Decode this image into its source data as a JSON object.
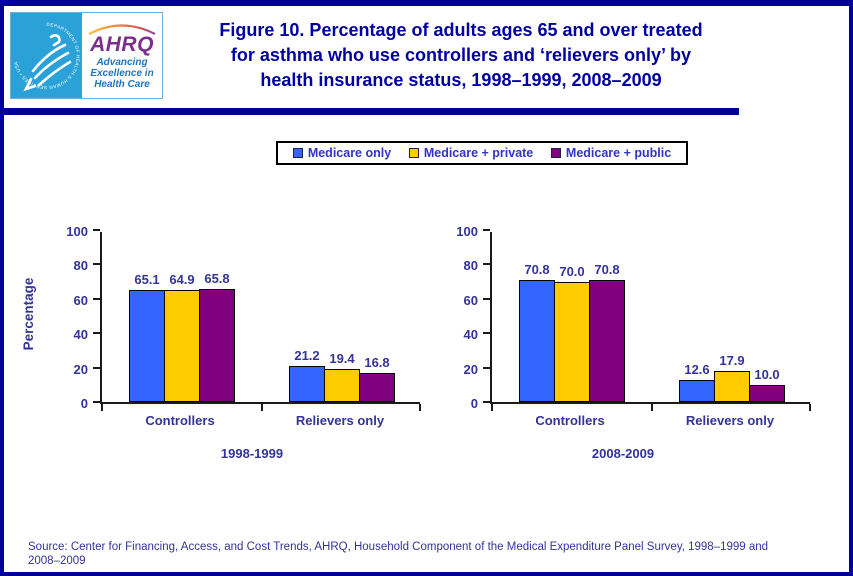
{
  "header": {
    "title_lines": [
      "Figure 10. Percentage of adults ages 65 and over treated",
      "for asthma who use controllers and ‘relievers only’ by",
      "health insurance status, 1998–1999, 2008–2009"
    ],
    "logo": {
      "org_abbr": "AHRQ",
      "tagline": "Advancing\nExcellence in\nHealth Care",
      "seal_text": "DEPARTMENT OF HEALTH & HUMAN SERVICES • USA"
    }
  },
  "legend": {
    "items": [
      {
        "label": "Medicare only",
        "color": "#3366FF"
      },
      {
        "label": "Medicare + private",
        "color": "#FFCC00"
      },
      {
        "label": "Medicare + public",
        "color": "#800080"
      }
    ]
  },
  "chart_data": [
    {
      "type": "bar",
      "title": "1998-1999",
      "categories": [
        "Controllers",
        "Relievers only"
      ],
      "series": [
        {
          "name": "Medicare only",
          "color": "#3366FF",
          "values": [
            65.1,
            21.2
          ]
        },
        {
          "name": "Medicare + private",
          "color": "#FFCC00",
          "values": [
            64.9,
            19.4
          ]
        },
        {
          "name": "Medicare + public",
          "color": "#800080",
          "values": [
            65.8,
            16.8
          ]
        }
      ],
      "ylabel": "Percentage",
      "ylim": [
        0,
        100
      ],
      "yticks": [
        0,
        20,
        40,
        60,
        80,
        100
      ],
      "grid": false,
      "legend_position": "top-center"
    },
    {
      "type": "bar",
      "title": "2008-2009",
      "categories": [
        "Controllers",
        "Relievers only"
      ],
      "series": [
        {
          "name": "Medicare only",
          "color": "#3366FF",
          "values": [
            70.8,
            12.6
          ]
        },
        {
          "name": "Medicare + private",
          "color": "#FFCC00",
          "values": [
            70.0,
            17.9
          ]
        },
        {
          "name": "Medicare + public",
          "color": "#800080",
          "values": [
            70.8,
            10.0
          ]
        }
      ],
      "ylabel": "",
      "ylim": [
        0,
        100
      ],
      "yticks": [
        0,
        20,
        40,
        60,
        80,
        100
      ],
      "grid": false,
      "legend_position": "top-center"
    }
  ],
  "source": {
    "line1": "Source: Center for Financing, Access, and Cost Trends, AHRQ,  Household Component of the Medical Expenditure Panel Survey,  1998–1999 and",
    "line2": "2008–2009"
  },
  "colors": {
    "frame": "#000099",
    "title_text": "#0000A0",
    "chart_text": "#333399",
    "hhs_blue": "#2AA2D8",
    "ahrq_purple": "#7B2E8C"
  }
}
